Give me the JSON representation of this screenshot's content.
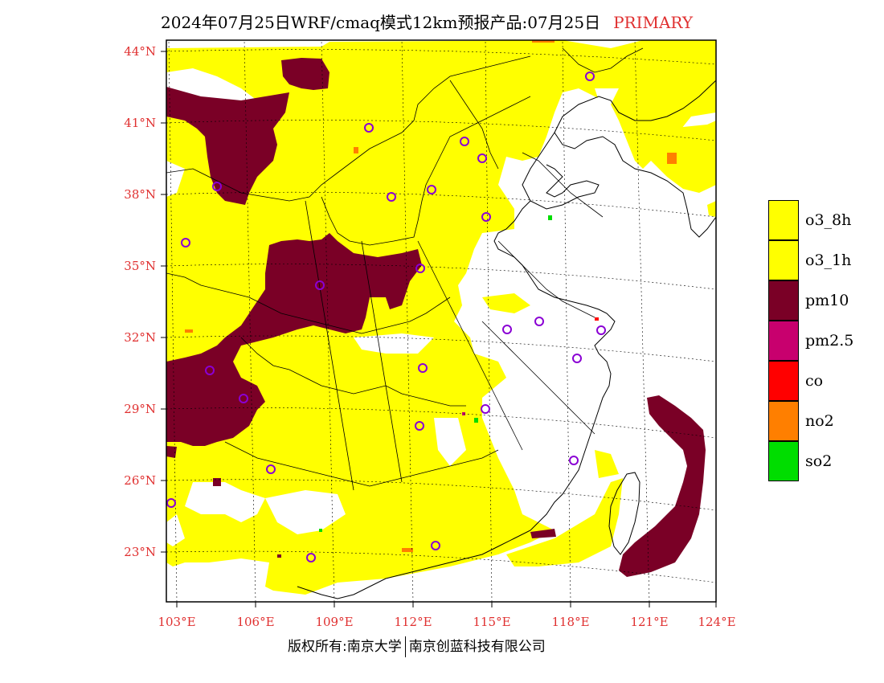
{
  "title": {
    "text": "2024年07月25日WRF/cmaq模式12km预报产品:07月25日",
    "tag": "PRIMARY"
  },
  "axes": {
    "lat_labels": [
      "44°N",
      "41°N",
      "38°N",
      "35°N",
      "32°N",
      "29°N",
      "26°N",
      "23°N"
    ],
    "lon_labels": [
      "103°E",
      "106°E",
      "109°E",
      "112°E",
      "115°E",
      "118°E",
      "121°E",
      "124°E"
    ],
    "label_color": "#e03030"
  },
  "legend": {
    "items": [
      {
        "label": "o3_8h",
        "color": "#ffff00"
      },
      {
        "label": "o3_1h",
        "color": "#ffff00"
      },
      {
        "label": "pm10",
        "color": "#7a0026"
      },
      {
        "label": "pm2.5",
        "color": "#c8006e"
      },
      {
        "label": "co",
        "color": "#ff0000"
      },
      {
        "label": "no2",
        "color": "#ff7f00"
      },
      {
        "label": "so2",
        "color": "#00dd00"
      }
    ]
  },
  "footer": {
    "left": "版权所有:南京大学",
    "right": "南京创蓝科技有限公司"
  },
  "colors": {
    "o3": "#ffff00",
    "pm10": "#7a0026",
    "city_marker": "#8a00d4",
    "border": "#000000"
  }
}
